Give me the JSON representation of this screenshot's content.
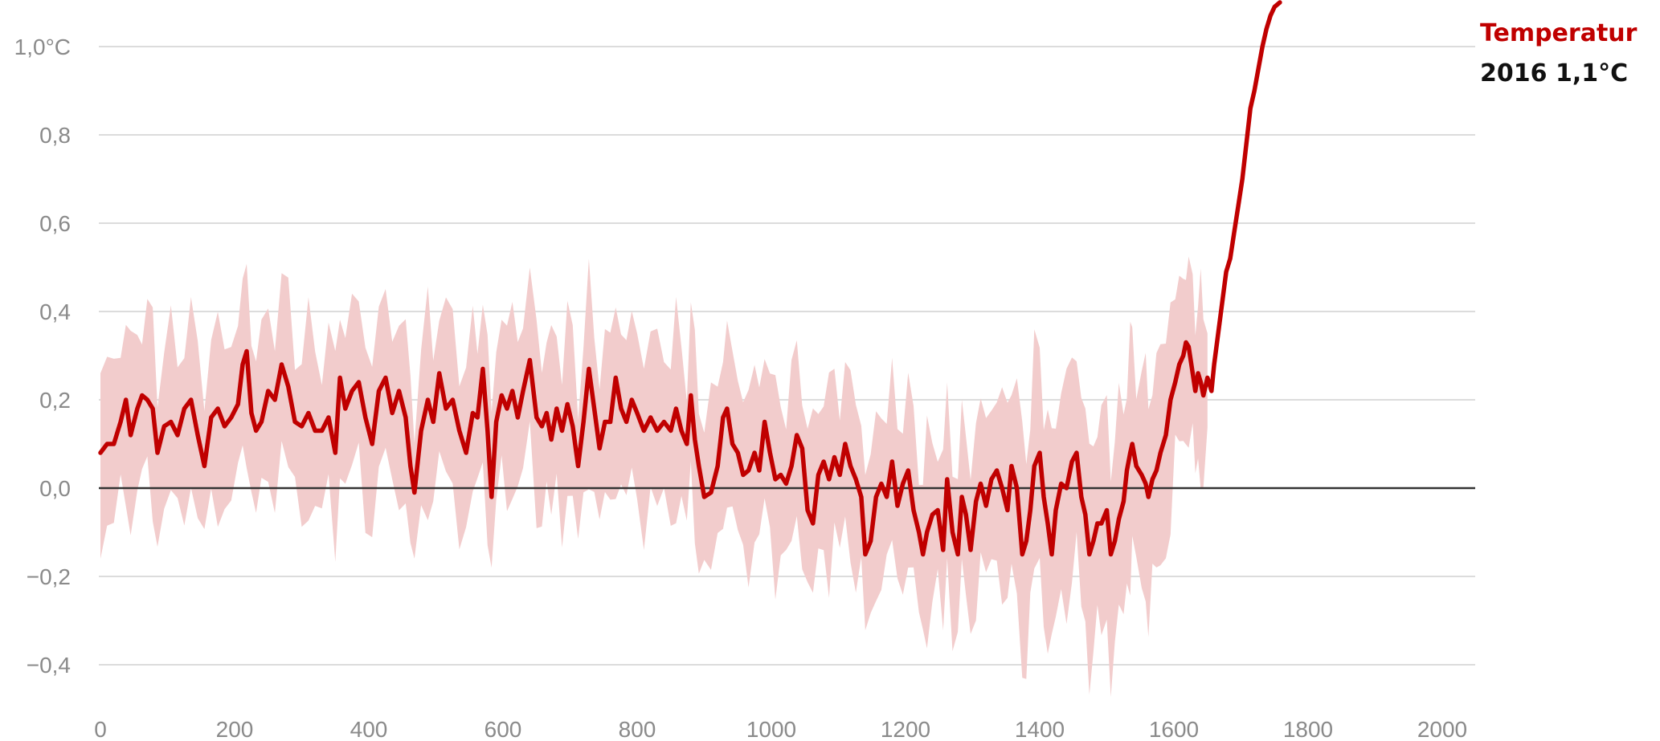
{
  "chart_data": {
    "type": "area",
    "xlim": [
      0,
      2016
    ],
    "ylim": [
      -0.46,
      1.1
    ],
    "x_ticks": [
      0,
      200,
      400,
      600,
      800,
      1000,
      1200,
      1400,
      1600,
      1800,
      2000
    ],
    "y_ticks": [
      1.0,
      0.8,
      0.6,
      0.4,
      0.2,
      0.0,
      -0.2,
      -0.4
    ],
    "y_tick_labels": [
      "1,0°C",
      "0,8",
      "0,6",
      "0,4",
      "0,2",
      "0,0",
      "−0,2",
      "−0,4"
    ],
    "grid": true,
    "zero_line": true,
    "colors": {
      "line": "#c00000",
      "band": "#f2cccc",
      "grid": "#dcdcdc",
      "zero": "#333333",
      "tick": "#8a8a8a"
    },
    "annotation": {
      "title": "Temperatur",
      "value": "2016  1,1°C"
    },
    "series": [
      {
        "role": "temperature",
        "points": [
          [
            0,
            0.08
          ],
          [
            10,
            0.1
          ],
          [
            20,
            0.1
          ],
          [
            30,
            0.15
          ],
          [
            38,
            0.2
          ],
          [
            45,
            0.12
          ],
          [
            55,
            0.18
          ],
          [
            62,
            0.21
          ],
          [
            70,
            0.2
          ],
          [
            78,
            0.18
          ],
          [
            85,
            0.08
          ],
          [
            95,
            0.14
          ],
          [
            105,
            0.15
          ],
          [
            115,
            0.12
          ],
          [
            125,
            0.18
          ],
          [
            135,
            0.2
          ],
          [
            145,
            0.12
          ],
          [
            155,
            0.05
          ],
          [
            165,
            0.16
          ],
          [
            175,
            0.18
          ],
          [
            185,
            0.14
          ],
          [
            195,
            0.16
          ],
          [
            205,
            0.19
          ],
          [
            212,
            0.28
          ],
          [
            218,
            0.31
          ],
          [
            225,
            0.17
          ],
          [
            232,
            0.13
          ],
          [
            240,
            0.15
          ],
          [
            250,
            0.22
          ],
          [
            260,
            0.2
          ],
          [
            270,
            0.28
          ],
          [
            280,
            0.23
          ],
          [
            290,
            0.15
          ],
          [
            300,
            0.14
          ],
          [
            310,
            0.17
          ],
          [
            320,
            0.13
          ],
          [
            330,
            0.13
          ],
          [
            340,
            0.16
          ],
          [
            350,
            0.08
          ],
          [
            357,
            0.25
          ],
          [
            365,
            0.18
          ],
          [
            375,
            0.22
          ],
          [
            385,
            0.24
          ],
          [
            395,
            0.16
          ],
          [
            405,
            0.1
          ],
          [
            415,
            0.22
          ],
          [
            425,
            0.25
          ],
          [
            435,
            0.17
          ],
          [
            445,
            0.22
          ],
          [
            455,
            0.16
          ],
          [
            462,
            0.05
          ],
          [
            468,
            -0.01
          ],
          [
            478,
            0.13
          ],
          [
            488,
            0.2
          ],
          [
            496,
            0.15
          ],
          [
            505,
            0.26
          ],
          [
            515,
            0.18
          ],
          [
            525,
            0.2
          ],
          [
            535,
            0.13
          ],
          [
            545,
            0.08
          ],
          [
            555,
            0.17
          ],
          [
            562,
            0.16
          ],
          [
            570,
            0.27
          ],
          [
            577,
            0.13
          ],
          [
            583,
            -0.02
          ],
          [
            590,
            0.15
          ],
          [
            598,
            0.21
          ],
          [
            606,
            0.18
          ],
          [
            614,
            0.22
          ],
          [
            622,
            0.16
          ],
          [
            630,
            0.22
          ],
          [
            640,
            0.29
          ],
          [
            650,
            0.16
          ],
          [
            658,
            0.14
          ],
          [
            665,
            0.17
          ],
          [
            672,
            0.11
          ],
          [
            680,
            0.18
          ],
          [
            688,
            0.13
          ],
          [
            696,
            0.19
          ],
          [
            704,
            0.14
          ],
          [
            712,
            0.05
          ],
          [
            720,
            0.15
          ],
          [
            728,
            0.27
          ],
          [
            736,
            0.18
          ],
          [
            744,
            0.09
          ],
          [
            752,
            0.15
          ],
          [
            760,
            0.15
          ],
          [
            768,
            0.25
          ],
          [
            776,
            0.18
          ],
          [
            784,
            0.15
          ],
          [
            792,
            0.2
          ],
          [
            800,
            0.17
          ],
          [
            810,
            0.13
          ],
          [
            820,
            0.16
          ],
          [
            830,
            0.13
          ],
          [
            840,
            0.15
          ],
          [
            850,
            0.13
          ],
          [
            858,
            0.18
          ],
          [
            866,
            0.13
          ],
          [
            874,
            0.1
          ],
          [
            880,
            0.21
          ],
          [
            886,
            0.11
          ],
          [
            892,
            0.05
          ],
          [
            900,
            -0.02
          ],
          [
            910,
            -0.01
          ],
          [
            920,
            0.05
          ],
          [
            928,
            0.16
          ],
          [
            934,
            0.18
          ],
          [
            942,
            0.1
          ],
          [
            950,
            0.08
          ],
          [
            958,
            0.03
          ],
          [
            966,
            0.04
          ],
          [
            975,
            0.08
          ],
          [
            982,
            0.04
          ],
          [
            990,
            0.15
          ],
          [
            998,
            0.08
          ],
          [
            1006,
            0.02
          ],
          [
            1014,
            0.03
          ],
          [
            1022,
            0.01
          ],
          [
            1030,
            0.05
          ],
          [
            1038,
            0.12
          ],
          [
            1046,
            0.09
          ],
          [
            1054,
            -0.05
          ],
          [
            1062,
            -0.08
          ],
          [
            1070,
            0.03
          ],
          [
            1078,
            0.06
          ],
          [
            1086,
            0.02
          ],
          [
            1094,
            0.07
          ],
          [
            1102,
            0.03
          ],
          [
            1110,
            0.1
          ],
          [
            1118,
            0.05
          ],
          [
            1126,
            0.02
          ],
          [
            1134,
            -0.02
          ],
          [
            1140,
            -0.15
          ],
          [
            1148,
            -0.12
          ],
          [
            1156,
            -0.02
          ],
          [
            1164,
            0.01
          ],
          [
            1172,
            -0.02
          ],
          [
            1180,
            0.06
          ],
          [
            1188,
            -0.04
          ],
          [
            1196,
            0.01
          ],
          [
            1204,
            0.04
          ],
          [
            1212,
            -0.05
          ],
          [
            1220,
            -0.1
          ],
          [
            1226,
            -0.15
          ],
          [
            1232,
            -0.1
          ],
          [
            1240,
            -0.06
          ],
          [
            1248,
            -0.05
          ],
          [
            1256,
            -0.14
          ],
          [
            1262,
            0.02
          ],
          [
            1270,
            -0.1
          ],
          [
            1278,
            -0.15
          ],
          [
            1284,
            -0.02
          ],
          [
            1290,
            -0.06
          ],
          [
            1297,
            -0.14
          ],
          [
            1305,
            -0.03
          ],
          [
            1312,
            0.01
          ],
          [
            1320,
            -0.04
          ],
          [
            1328,
            0.02
          ],
          [
            1336,
            0.04
          ],
          [
            1344,
            0.0
          ],
          [
            1352,
            -0.05
          ],
          [
            1358,
            0.05
          ],
          [
            1366,
            0.0
          ],
          [
            1374,
            -0.15
          ],
          [
            1380,
            -0.12
          ],
          [
            1386,
            -0.05
          ],
          [
            1392,
            0.05
          ],
          [
            1400,
            0.08
          ],
          [
            1406,
            -0.02
          ],
          [
            1412,
            -0.08
          ],
          [
            1418,
            -0.15
          ],
          [
            1424,
            -0.05
          ],
          [
            1432,
            0.01
          ],
          [
            1440,
            0.0
          ],
          [
            1448,
            0.06
          ],
          [
            1455,
            0.08
          ],
          [
            1462,
            -0.02
          ],
          [
            1468,
            -0.06
          ],
          [
            1474,
            -0.15
          ],
          [
            1480,
            -0.12
          ],
          [
            1486,
            -0.08
          ],
          [
            1492,
            -0.08
          ],
          [
            1500,
            -0.05
          ],
          [
            1506,
            -0.15
          ],
          [
            1512,
            -0.12
          ],
          [
            1518,
            -0.07
          ],
          [
            1525,
            -0.03
          ],
          [
            1530,
            0.04
          ],
          [
            1535,
            0.08
          ],
          [
            1538,
            0.1
          ],
          [
            1544,
            0.05
          ],
          [
            1552,
            0.03
          ],
          [
            1558,
            0.01
          ],
          [
            1562,
            -0.02
          ],
          [
            1568,
            0.02
          ],
          [
            1574,
            0.04
          ],
          [
            1580,
            0.08
          ],
          [
            1588,
            0.12
          ],
          [
            1595,
            0.2
          ],
          [
            1602,
            0.24
          ],
          [
            1608,
            0.28
          ],
          [
            1614,
            0.3
          ],
          [
            1618,
            0.33
          ],
          [
            1622,
            0.32
          ],
          [
            1628,
            0.26
          ],
          [
            1632,
            0.22
          ],
          [
            1636,
            0.26
          ],
          [
            1640,
            0.24
          ],
          [
            1644,
            0.21
          ],
          [
            1650,
            0.25
          ],
          [
            1656,
            0.22
          ],
          [
            1660,
            0.28
          ],
          [
            1666,
            0.35
          ],
          [
            1672,
            0.42
          ],
          [
            1678,
            0.49
          ],
          [
            1684,
            0.52
          ],
          [
            1690,
            0.58
          ],
          [
            1696,
            0.64
          ],
          [
            1702,
            0.7
          ],
          [
            1708,
            0.78
          ],
          [
            1714,
            0.86
          ],
          [
            1720,
            0.9
          ],
          [
            1726,
            0.95
          ],
          [
            1732,
            1.0
          ],
          [
            1738,
            1.04
          ],
          [
            1744,
            1.07
          ],
          [
            1750,
            1.09
          ],
          [
            1758,
            1.1
          ]
        ]
      }
    ]
  }
}
